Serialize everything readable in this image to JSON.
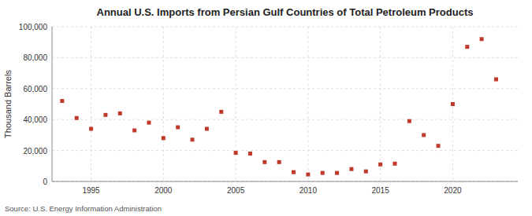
{
  "chart_data": {
    "type": "scatter",
    "title": "Annual U.S. Imports from Persian Gulf Countries of Total Petroleum Products",
    "y_label": "Thousand Barrels",
    "source": "Source: U.S. Energy Information Administration",
    "x": [
      1993,
      1994,
      1995,
      1996,
      1997,
      1998,
      1999,
      2000,
      2001,
      2002,
      2003,
      2004,
      2005,
      2006,
      2007,
      2008,
      2009,
      2010,
      2011,
      2012,
      2013,
      2014,
      2015,
      2016,
      2017,
      2018,
      2019,
      2020,
      2021,
      2022,
      2023
    ],
    "values": [
      52000,
      41000,
      34000,
      43000,
      44000,
      33000,
      38000,
      28000,
      35000,
      27000,
      34000,
      45000,
      18500,
      18000,
      12500,
      12500,
      6000,
      4500,
      5500,
      5500,
      8000,
      6500,
      11000,
      11500,
      39000,
      30000,
      23000,
      50000,
      87000,
      92000,
      66000
    ],
    "color": "#c0392b",
    "marker": "square",
    "xlim": [
      1992.3,
      2024.5
    ],
    "xticks": [
      1995,
      2000,
      2005,
      2010,
      2015,
      2020
    ],
    "ylim": [
      0,
      100000
    ],
    "yticks": [
      0,
      {
        "value": 20000,
        "label": "20,000"
      },
      {
        "value": 40000,
        "label": "40,000"
      },
      {
        "value": 60000,
        "label": "60,000"
      },
      {
        "value": 80000,
        "label": "80,000"
      },
      {
        "value": 100000,
        "label": "100,000"
      }
    ],
    "grid": true
  }
}
